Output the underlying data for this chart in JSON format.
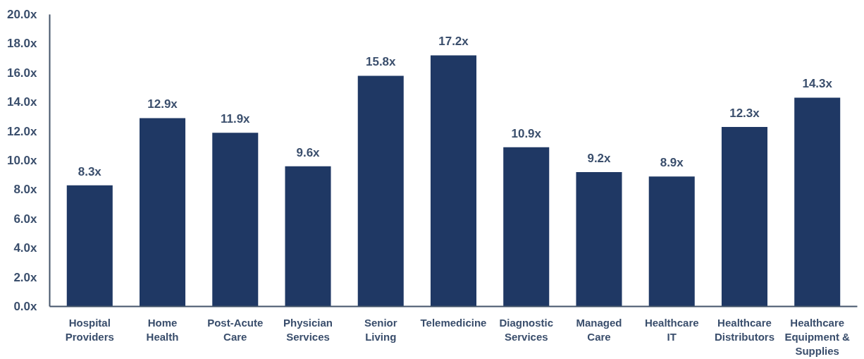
{
  "chart_data": {
    "type": "bar",
    "categories": [
      "Hospital Providers",
      "Home Health",
      "Post-Acute Care",
      "Physician Services",
      "Senior Living",
      "Telemedicine",
      "Diagnostic Services",
      "Managed Care",
      "Healthcare IT",
      "Healthcare Distributors",
      "Healthcare Equipment & Supplies"
    ],
    "values": [
      8.3,
      12.9,
      11.9,
      9.6,
      15.8,
      17.2,
      10.9,
      9.2,
      8.9,
      12.3,
      14.3
    ],
    "value_labels": [
      "8.3x",
      "12.9x",
      "11.9x",
      "9.6x",
      "15.8x",
      "17.2x",
      "10.9x",
      "9.2x",
      "8.9x",
      "12.3x",
      "14.3x"
    ],
    "color": "#1f3864",
    "ylim": [
      0,
      20
    ],
    "yticks": [
      {
        "value": 0,
        "label": "0.0x"
      },
      {
        "value": 2,
        "label": "2.0x"
      },
      {
        "value": 4,
        "label": "4.0x"
      },
      {
        "value": 6,
        "label": "6.0x"
      },
      {
        "value": 8,
        "label": "8.0x"
      },
      {
        "value": 10,
        "label": "10.0x"
      },
      {
        "value": 12,
        "label": "12.0x"
      },
      {
        "value": 14,
        "label": "14.0x"
      },
      {
        "value": 16,
        "label": "16.0x"
      },
      {
        "value": 18,
        "label": "18.0x"
      },
      {
        "value": 20,
        "label": "20.0x"
      }
    ],
    "grid": false
  }
}
